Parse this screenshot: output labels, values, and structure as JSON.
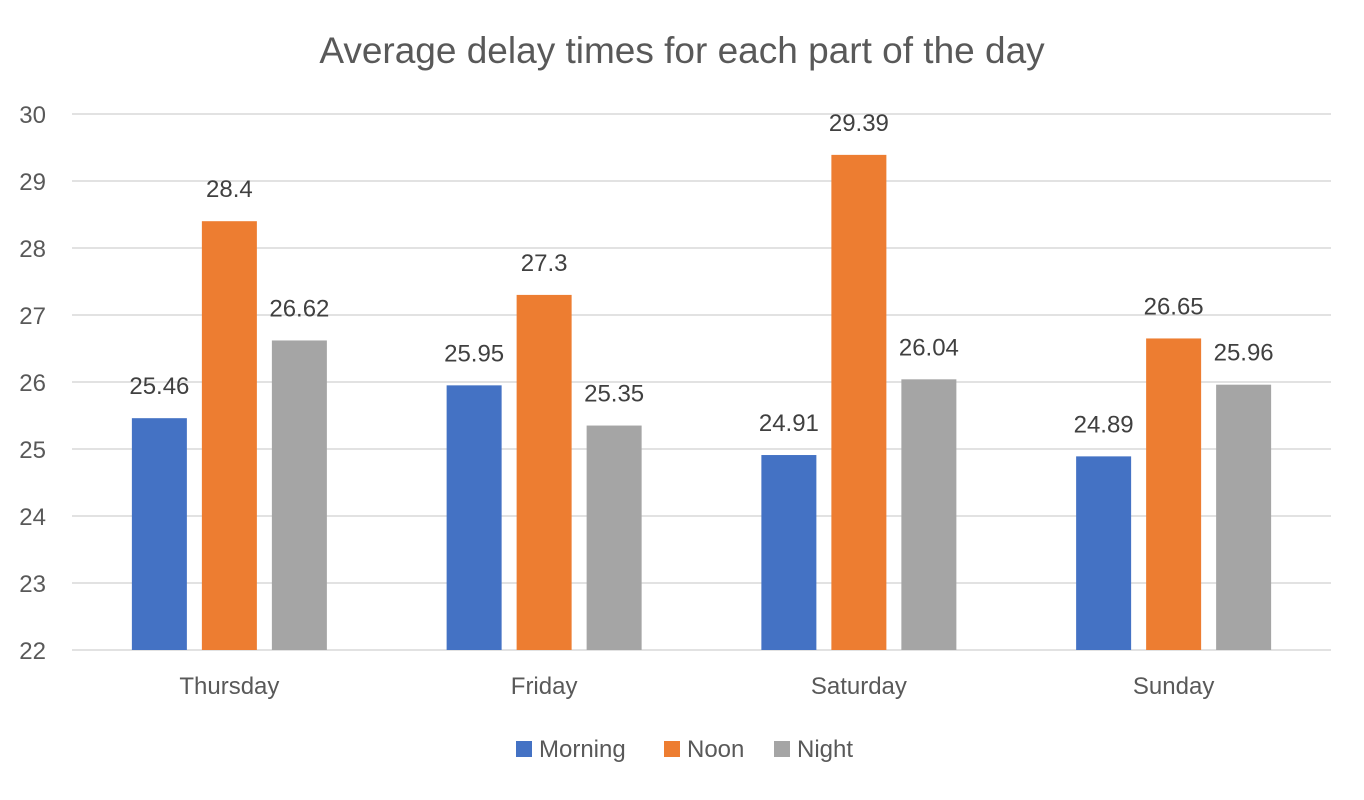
{
  "chart_data": {
    "type": "bar",
    "title": "Average delay times for each part of the day",
    "xlabel": "",
    "ylabel": "",
    "categories": [
      "Thursday",
      "Friday",
      "Saturday",
      "Sunday"
    ],
    "series": [
      {
        "name": "Morning",
        "color": "#4472C4",
        "values": [
          25.46,
          25.95,
          24.91,
          24.89
        ]
      },
      {
        "name": "Noon",
        "color": "#ED7D31",
        "values": [
          28.4,
          27.3,
          29.39,
          26.65
        ]
      },
      {
        "name": "Night",
        "color": "#A5A5A5",
        "values": [
          26.62,
          25.35,
          26.04,
          25.96
        ]
      }
    ],
    "data_labels": [
      [
        "25.46",
        "25.95",
        "24.91",
        "24.89"
      ],
      [
        "28.4",
        "27.3",
        "29.39",
        "26.65"
      ],
      [
        "26.62",
        "25.35",
        "26.04",
        "25.96"
      ]
    ],
    "ylim": [
      22,
      30
    ],
    "yticks": [
      "22",
      "23",
      "24",
      "25",
      "26",
      "27",
      "28",
      "29",
      "30"
    ],
    "grid": true,
    "legend_position": "bottom"
  }
}
